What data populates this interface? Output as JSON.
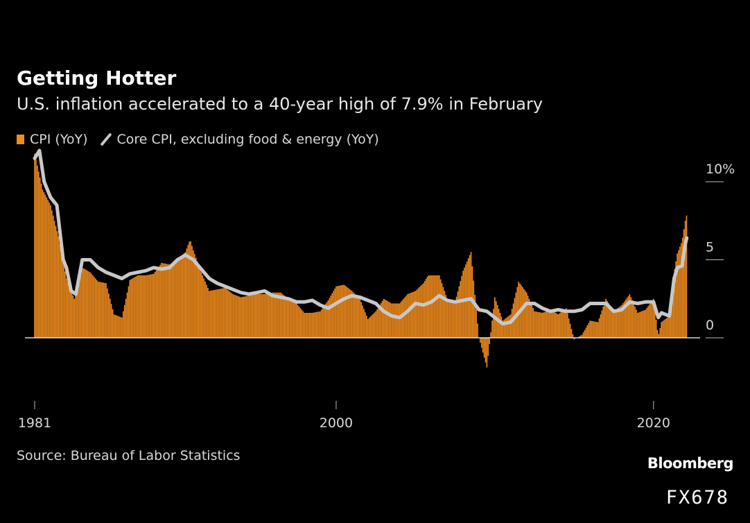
{
  "chart_data": {
    "type": "bar",
    "title": "Getting Hotter",
    "subtitle": "U.S. inflation accelerated to a 40-year high of 7.9% in February",
    "legend": [
      {
        "name": "CPI (YoY)",
        "marker": "bar",
        "color": "#f08c1e"
      },
      {
        "name": "Core CPI, excluding food & energy (YoY)",
        "marker": "line",
        "color": "#c8c8c8"
      }
    ],
    "ylim": [
      -4,
      11.5
    ],
    "yticks": [
      {
        "value": 10,
        "label": "10%"
      },
      {
        "value": 5,
        "label": "5"
      },
      {
        "value": 0,
        "label": "0"
      }
    ],
    "xlim": [
      1981.0,
      2022.5
    ],
    "xticks": [
      {
        "value": 1981,
        "label": "1981"
      },
      {
        "value": 2000,
        "label": "2000"
      },
      {
        "value": 2020,
        "label": "2020"
      }
    ],
    "series": [
      {
        "name": "CPI (YoY)",
        "type": "bar",
        "x": [
          1981.0,
          1981.5,
          1982.0,
          1982.5,
          1983.0,
          1983.5,
          1984.0,
          1984.5,
          1985.0,
          1985.5,
          1986.0,
          1986.5,
          1987.0,
          1987.5,
          1988.0,
          1988.5,
          1989.0,
          1989.5,
          1990.0,
          1990.5,
          1990.8,
          1991.0,
          1991.5,
          1992.0,
          1992.5,
          1993.0,
          1993.5,
          1994.0,
          1994.5,
          1995.0,
          1995.5,
          1996.0,
          1996.5,
          1997.0,
          1997.5,
          1998.0,
          1998.5,
          1999.0,
          1999.5,
          2000.0,
          2000.5,
          2001.0,
          2001.5,
          2002.0,
          2002.5,
          2003.0,
          2003.5,
          2004.0,
          2004.5,
          2005.0,
          2005.5,
          2005.8,
          2006.0,
          2006.5,
          2007.0,
          2007.5,
          2008.0,
          2008.5,
          2009.0,
          2009.5,
          2010.0,
          2010.5,
          2011.0,
          2011.5,
          2012.0,
          2012.5,
          2013.0,
          2013.5,
          2014.0,
          2014.5,
          2015.0,
          2015.5,
          2016.0,
          2016.5,
          2017.0,
          2017.5,
          2018.0,
          2018.5,
          2019.0,
          2019.5,
          2020.0,
          2020.3,
          2020.5,
          2021.0,
          2021.3,
          2021.5,
          2021.8,
          2022.0,
          2022.1
        ],
        "values": [
          11.8,
          9.5,
          8.5,
          6.5,
          3.8,
          2.5,
          4.5,
          4.2,
          3.6,
          3.5,
          1.5,
          1.3,
          3.7,
          4.0,
          4.0,
          4.1,
          4.8,
          4.7,
          5.0,
          5.5,
          6.3,
          5.6,
          4.2,
          3.0,
          3.1,
          3.2,
          2.8,
          2.6,
          2.7,
          2.8,
          2.8,
          2.9,
          2.9,
          2.5,
          2.2,
          1.6,
          1.6,
          1.7,
          2.4,
          3.3,
          3.4,
          3.0,
          2.5,
          1.2,
          1.7,
          2.5,
          2.2,
          2.2,
          2.8,
          3.0,
          3.5,
          4.0,
          4.0,
          4.0,
          2.5,
          2.3,
          4.3,
          5.5,
          0.0,
          -1.9,
          2.6,
          1.1,
          1.5,
          3.6,
          2.9,
          1.7,
          1.6,
          1.8,
          1.5,
          1.9,
          -0.1,
          0.2,
          1.1,
          1.0,
          2.5,
          1.7,
          2.1,
          2.8,
          1.6,
          1.8,
          2.5,
          0.1,
          1.0,
          1.4,
          4.2,
          5.4,
          6.2,
          7.5,
          7.9
        ]
      },
      {
        "name": "Core CPI, excluding food & energy (YoY)",
        "type": "line",
        "x": [
          1981.0,
          1981.3,
          1981.6,
          1982.0,
          1982.4,
          1982.8,
          1983.0,
          1983.3,
          1983.6,
          1984.0,
          1984.5,
          1985.0,
          1985.5,
          1986.0,
          1986.5,
          1987.0,
          1987.5,
          1988.0,
          1988.5,
          1989.0,
          1989.5,
          1990.0,
          1990.5,
          1991.0,
          1991.5,
          1992.0,
          1992.5,
          1993.0,
          1993.5,
          1994.0,
          1994.5,
          1995.0,
          1995.5,
          1996.0,
          1996.5,
          1997.0,
          1997.5,
          1998.0,
          1998.5,
          1999.0,
          1999.5,
          2000.0,
          2000.5,
          2001.0,
          2001.5,
          2002.0,
          2002.5,
          2003.0,
          2003.5,
          2004.0,
          2004.5,
          2005.0,
          2005.5,
          2006.0,
          2006.5,
          2007.0,
          2007.5,
          2008.0,
          2008.5,
          2009.0,
          2009.5,
          2010.0,
          2010.5,
          2011.0,
          2011.5,
          2012.0,
          2012.5,
          2013.0,
          2013.5,
          2014.0,
          2014.5,
          2015.0,
          2015.5,
          2016.0,
          2016.5,
          2017.0,
          2017.5,
          2018.0,
          2018.5,
          2019.0,
          2019.5,
          2020.0,
          2020.3,
          2020.5,
          2021.0,
          2021.3,
          2021.5,
          2021.8,
          2022.0,
          2022.1
        ],
        "values": [
          11.5,
          12.0,
          10.0,
          9.0,
          8.5,
          5.0,
          4.5,
          3.0,
          2.8,
          5.0,
          5.0,
          4.5,
          4.2,
          4.0,
          3.8,
          4.1,
          4.2,
          4.3,
          4.5,
          4.4,
          4.5,
          5.0,
          5.3,
          5.0,
          4.4,
          3.8,
          3.5,
          3.3,
          3.1,
          2.9,
          2.8,
          2.9,
          3.0,
          2.7,
          2.6,
          2.5,
          2.3,
          2.3,
          2.4,
          2.1,
          1.9,
          2.2,
          2.5,
          2.7,
          2.6,
          2.4,
          2.2,
          1.7,
          1.4,
          1.3,
          1.7,
          2.2,
          2.1,
          2.3,
          2.7,
          2.4,
          2.3,
          2.4,
          2.5,
          1.8,
          1.7,
          1.3,
          0.9,
          1.0,
          1.6,
          2.2,
          2.2,
          1.9,
          1.7,
          1.8,
          1.7,
          1.7,
          1.8,
          2.2,
          2.2,
          2.2,
          1.7,
          1.8,
          2.3,
          2.2,
          2.3,
          2.3,
          1.3,
          1.6,
          1.4,
          3.8,
          4.5,
          4.6,
          6.0,
          6.4
        ]
      }
    ],
    "source": "Source: Bureau of Labor Statistics",
    "colors": {
      "bar": "#f08c1e",
      "line": "#c8c8c8",
      "zero_line": "#ffffff",
      "tick_label": "#d8d8d8"
    }
  },
  "brand": "Bloomberg",
  "watermark": "FX678"
}
